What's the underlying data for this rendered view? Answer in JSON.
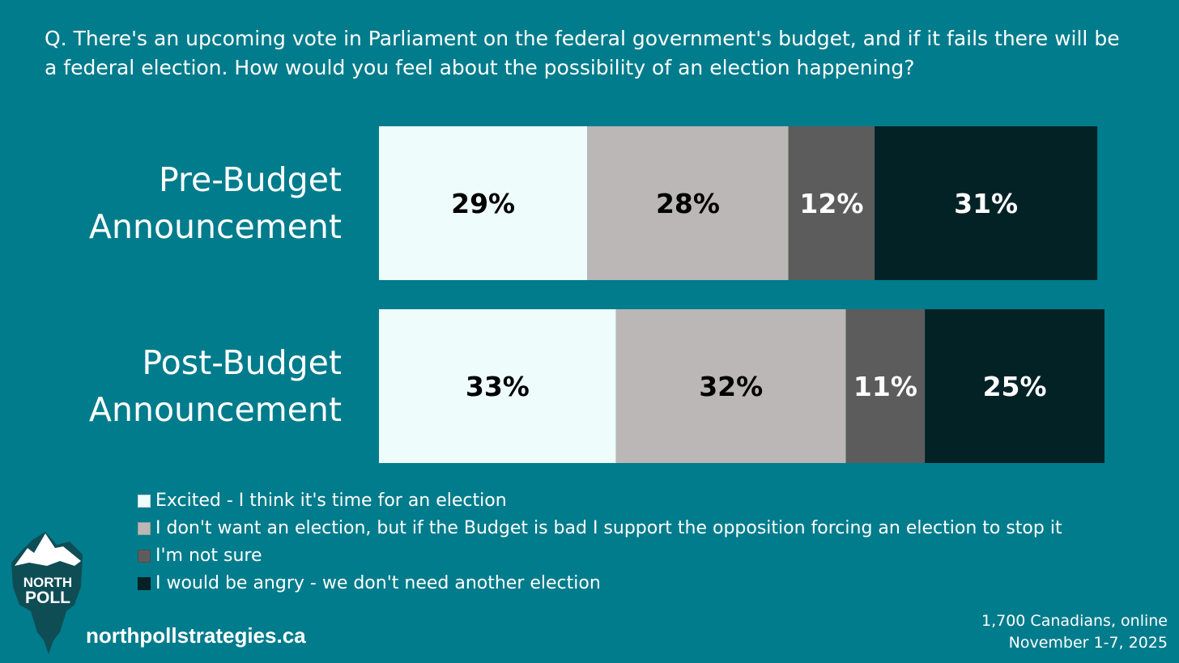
{
  "question": "Q. There's an upcoming vote in Parliament on the federal government's budget, and if it fails there will be a federal election. How would you feel about the possibility of an election happening?",
  "chart_data": {
    "type": "bar",
    "orientation": "horizontal",
    "stacked": true,
    "title": "Q. There's an upcoming vote in Parliament on the federal government's budget, and if it fails there will be a federal election. How would you feel about the possibility of an election happening?",
    "categories": [
      [
        "Pre-Budget",
        "Announcement"
      ],
      [
        "Post-Budget",
        "Announcement"
      ]
    ],
    "series": [
      {
        "name": "Excited - I think it's time for an election",
        "color": "#effcfc",
        "label_color": "#000000",
        "values": [
          29,
          33
        ],
        "labels": [
          "29%",
          "33%"
        ]
      },
      {
        "name": "I don't want an election, but if the Budget is bad I support the opposition forcing an election to stop it",
        "color": "#bab7b6",
        "label_color": "#000000",
        "values": [
          28,
          32
        ],
        "labels": [
          "28%",
          "32%"
        ]
      },
      {
        "name": "I'm not sure",
        "color": "#5c5c5c",
        "label_color": "#ffffff",
        "values": [
          12,
          11
        ],
        "labels": [
          "12%",
          "11%"
        ]
      },
      {
        "name": "I would be angry - we don't need another election",
        "color": "#022226",
        "label_color": "#ffffff",
        "values": [
          31,
          25
        ],
        "labels": [
          "31%",
          "25%"
        ]
      }
    ],
    "xlim": [
      0,
      101
    ],
    "legend_position": "bottom-left"
  },
  "logo": {
    "line1": "NORTH",
    "line2": "POLL"
  },
  "website": "northpollstrategies.ca",
  "sample": {
    "line1": "1,700 Canadians, online",
    "line2": "November 1-7, 2025"
  }
}
